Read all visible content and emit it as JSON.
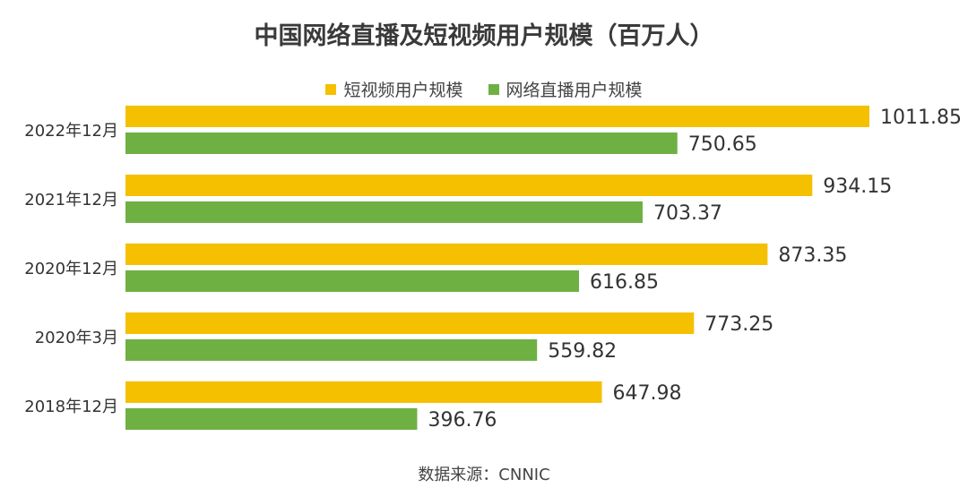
{
  "chart_data": {
    "type": "bar",
    "orientation": "horizontal",
    "title": "中国网络直播及短视频用户规模（百万人）",
    "categories": [
      "2022年12月",
      "2021年12月",
      "2020年12月",
      "2020年3月",
      "2018年12月"
    ],
    "series": [
      {
        "name": "短视频用户规模",
        "color": "#F5C000",
        "values": [
          1011.85,
          934.15,
          873.35,
          773.25,
          647.98
        ]
      },
      {
        "name": "网络直播用户规模",
        "color": "#6FB043",
        "values": [
          750.65,
          703.37,
          616.85,
          559.82,
          396.76
        ]
      }
    ],
    "xlim": [
      0,
      1011.85
    ],
    "legend_position": "top-center",
    "grid": false,
    "data_labels": true
  },
  "source": "数据来源：CNNIC"
}
